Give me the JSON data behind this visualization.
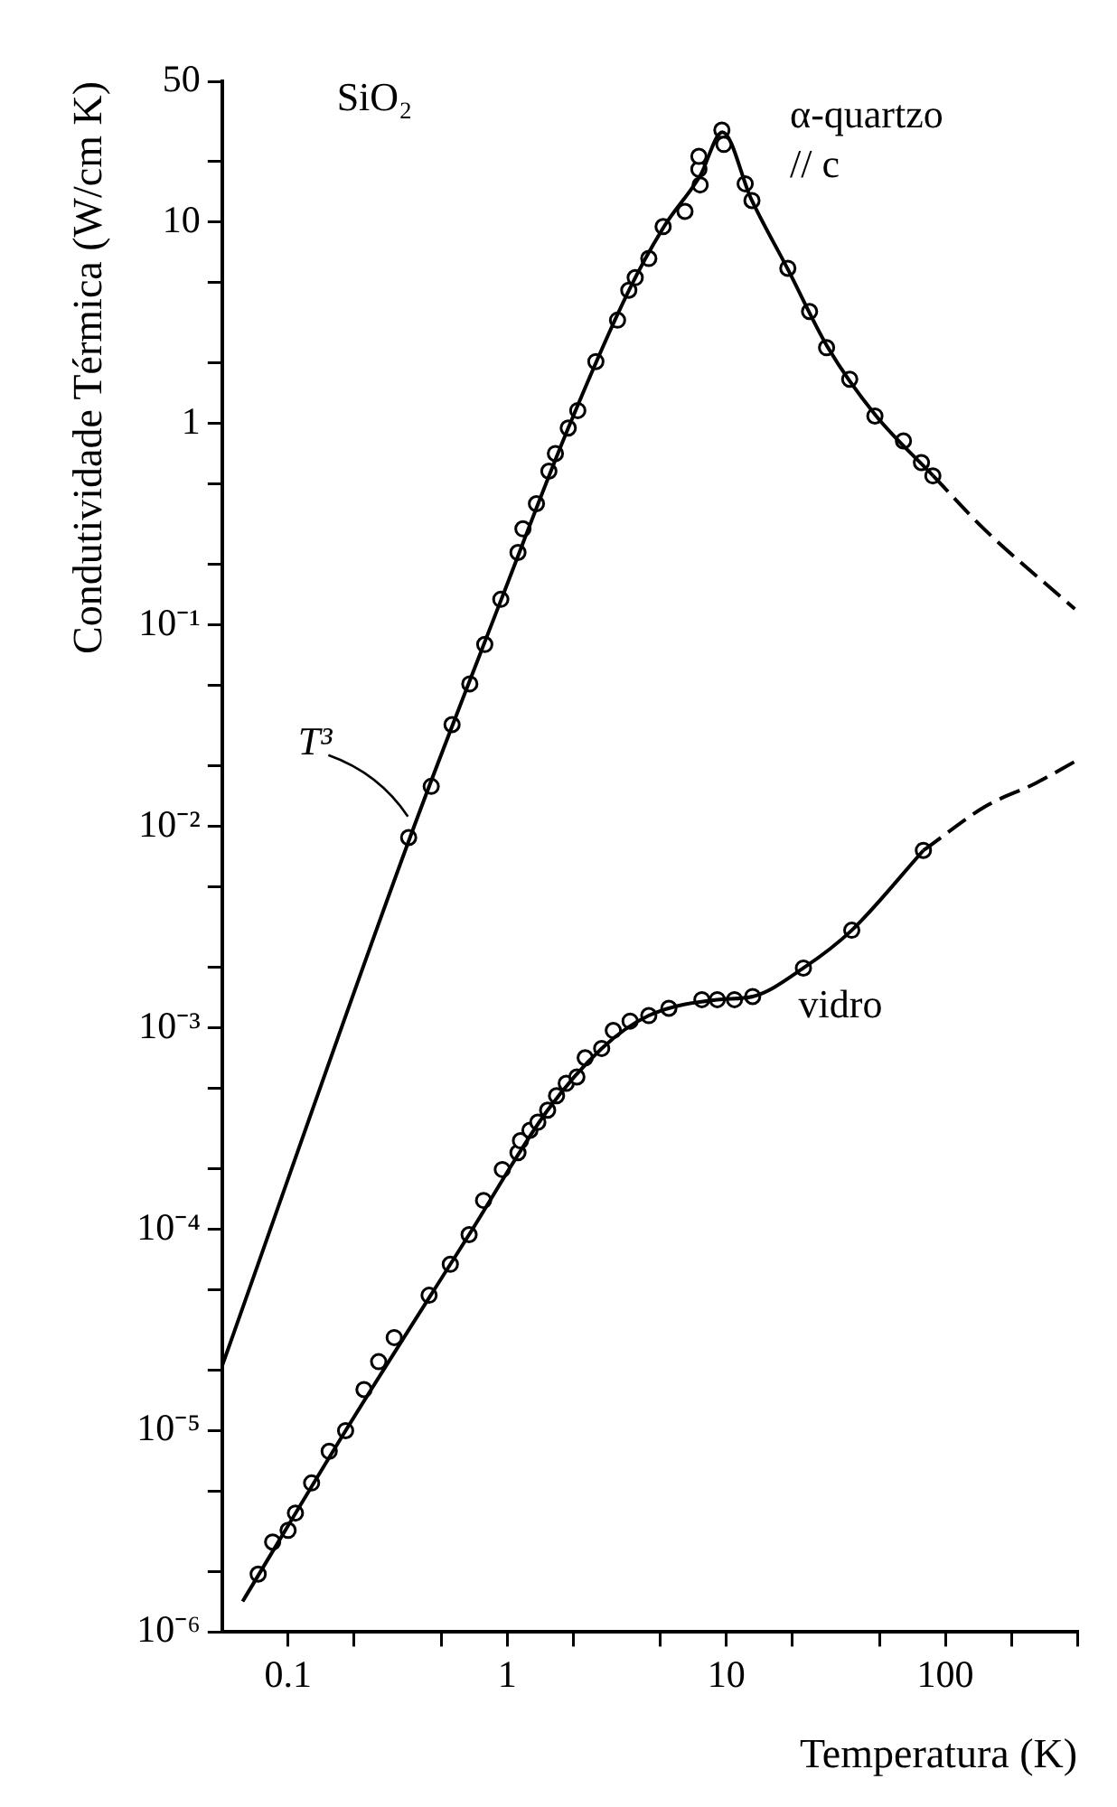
{
  "chart_data": {
    "type": "line",
    "log": "xy",
    "grid": false,
    "legend": false,
    "xlabel": "Temperatura (K)",
    "ylabel": "Condutividade Térmica (W/cm K)",
    "xlim": [
      0.05,
      400
    ],
    "ylim": [
      1e-06,
      50
    ],
    "xticks": [
      {
        "value": 0.1,
        "label": "0.1"
      },
      {
        "value": 0.2,
        "label": null
      },
      {
        "value": 0.5,
        "label": null
      },
      1,
      {
        "value": 2,
        "label": null
      },
      {
        "value": 5,
        "label": null
      },
      10,
      {
        "value": 20,
        "label": null
      },
      {
        "value": 50,
        "label": null
      },
      100,
      {
        "value": 200,
        "label": null
      },
      {
        "value": 400,
        "label": null
      }
    ],
    "yticks": [
      {
        "value": 1e-06,
        "label": "10⁻⁶"
      },
      {
        "value": 2e-06,
        "label": null
      },
      {
        "value": 5e-06,
        "label": null
      },
      {
        "value": 1e-05,
        "label": "10⁻⁵"
      },
      {
        "value": 2e-05,
        "label": null
      },
      {
        "value": 5e-05,
        "label": null
      },
      {
        "value": 0.0001,
        "label": "10⁻⁴"
      },
      {
        "value": 0.0002,
        "label": null
      },
      {
        "value": 0.0005,
        "label": null
      },
      {
        "value": 0.001,
        "label": "10⁻³"
      },
      {
        "value": 0.002,
        "label": null
      },
      {
        "value": 0.005,
        "label": null
      },
      {
        "value": 0.01,
        "label": "10⁻²"
      },
      {
        "value": 0.02,
        "label": null
      },
      {
        "value": 0.05,
        "label": null
      },
      {
        "value": 0.1,
        "label": "10⁻¹"
      },
      {
        "value": 0.2,
        "label": null
      },
      {
        "value": 0.5,
        "label": null
      },
      1,
      {
        "value": 2,
        "label": null
      },
      {
        "value": 5,
        "label": null
      },
      10,
      {
        "value": 20,
        "label": null
      },
      50
    ],
    "annotations": [
      "SiO₂",
      "α-quartzo",
      "// c",
      "vidro",
      {
        "text": "T³",
        "x": 0.38,
        "y": 0.0103
      }
    ],
    "series": [
      {
        "line_style": "solid",
        "marker": "none",
        "color": "#000000",
        "x": [
          0.05,
          0.36,
          0.94,
          1.9,
          3.6,
          5.2,
          7.6,
          9.6,
          13,
          19,
          29,
          48,
          88
        ],
        "values": [
          2.1e-05,
          0.0088,
          0.134,
          0.95,
          4.6,
          9.5,
          17,
          28,
          13,
          5.9,
          2.4,
          1.1,
          0.55
        ]
      },
      {
        "line_style": "dashed",
        "marker": "none",
        "color": "#000000",
        "x": [
          88,
          150,
          390
        ],
        "values": [
          0.55,
          0.3,
          0.12
        ]
      },
      {
        "type": "scatter",
        "marker": "circle",
        "color": "#000000",
        "x": [
          0.355,
          0.45,
          0.56,
          0.675,
          0.79,
          0.935,
          1.12,
          1.18,
          1.36,
          1.55,
          1.66,
          1.9,
          2.1,
          2.54,
          3.19,
          3.59,
          3.84,
          4.43,
          5.15,
          6.48,
          7.6,
          7.5,
          7.5,
          9.55,
          9.75,
          12.2,
          13.1,
          19.1,
          24,
          28.7,
          36.6,
          47.7,
          64.4,
          77.8,
          87.7
        ],
        "values": [
          0.0088,
          0.0158,
          0.032,
          0.051,
          0.08,
          0.134,
          0.229,
          0.3,
          0.4,
          0.58,
          0.71,
          0.95,
          1.16,
          2.03,
          3.26,
          4.59,
          5.3,
          6.6,
          9.5,
          11.3,
          15.3,
          18.3,
          21.2,
          28.6,
          24.3,
          15.5,
          12.8,
          5.9,
          3.6,
          2.38,
          1.66,
          1.09,
          0.82,
          0.64,
          0.55
        ]
      },
      {
        "line_style": "solid",
        "marker": "none",
        "color": "#000000",
        "x": [
          0.062,
          0.183,
          0.67,
          1.53,
          2.7,
          4.43,
          9.1,
          13.2,
          22.5,
          37.4,
          79.4
        ],
        "values": [
          1.42e-06,
          1e-05,
          9.4e-05,
          0.00039,
          0.00079,
          0.00115,
          0.00138,
          0.00143,
          0.00198,
          0.00305,
          0.0076
        ]
      },
      {
        "line_style": "dashed",
        "marker": "none",
        "color": "#000000",
        "x": [
          79.4,
          153,
          259,
          400
        ],
        "values": [
          0.0076,
          0.0126,
          0.0164,
          0.0213
        ]
      },
      {
        "type": "scatter",
        "marker": "circle",
        "color": "#000000",
        "x": [
          0.073,
          0.085,
          0.1,
          0.108,
          0.128,
          0.154,
          0.183,
          0.222,
          0.259,
          0.305,
          0.44,
          0.55,
          0.67,
          0.78,
          0.95,
          1.12,
          1.15,
          1.27,
          1.38,
          1.53,
          1.68,
          1.86,
          2.08,
          2.27,
          2.7,
          3.05,
          3.64,
          4.43,
          5.47,
          7.74,
          9.1,
          10.9,
          13.2,
          22.5,
          37.4,
          79.4
        ],
        "values": [
          1.94e-06,
          2.8e-06,
          3.2e-06,
          3.9e-06,
          5.5e-06,
          7.9e-06,
          1e-05,
          1.6e-05,
          2.2e-05,
          2.9e-05,
          4.7e-05,
          6.7e-05,
          9.4e-05,
          0.000139,
          0.000198,
          0.00024,
          0.000275,
          0.00031,
          0.00034,
          0.00039,
          0.00046,
          0.00053,
          0.00057,
          0.00071,
          0.00079,
          0.00097,
          0.00108,
          0.00115,
          0.00125,
          0.00138,
          0.00138,
          0.00138,
          0.00143,
          0.00198,
          0.00305,
          0.0076
        ]
      }
    ]
  }
}
